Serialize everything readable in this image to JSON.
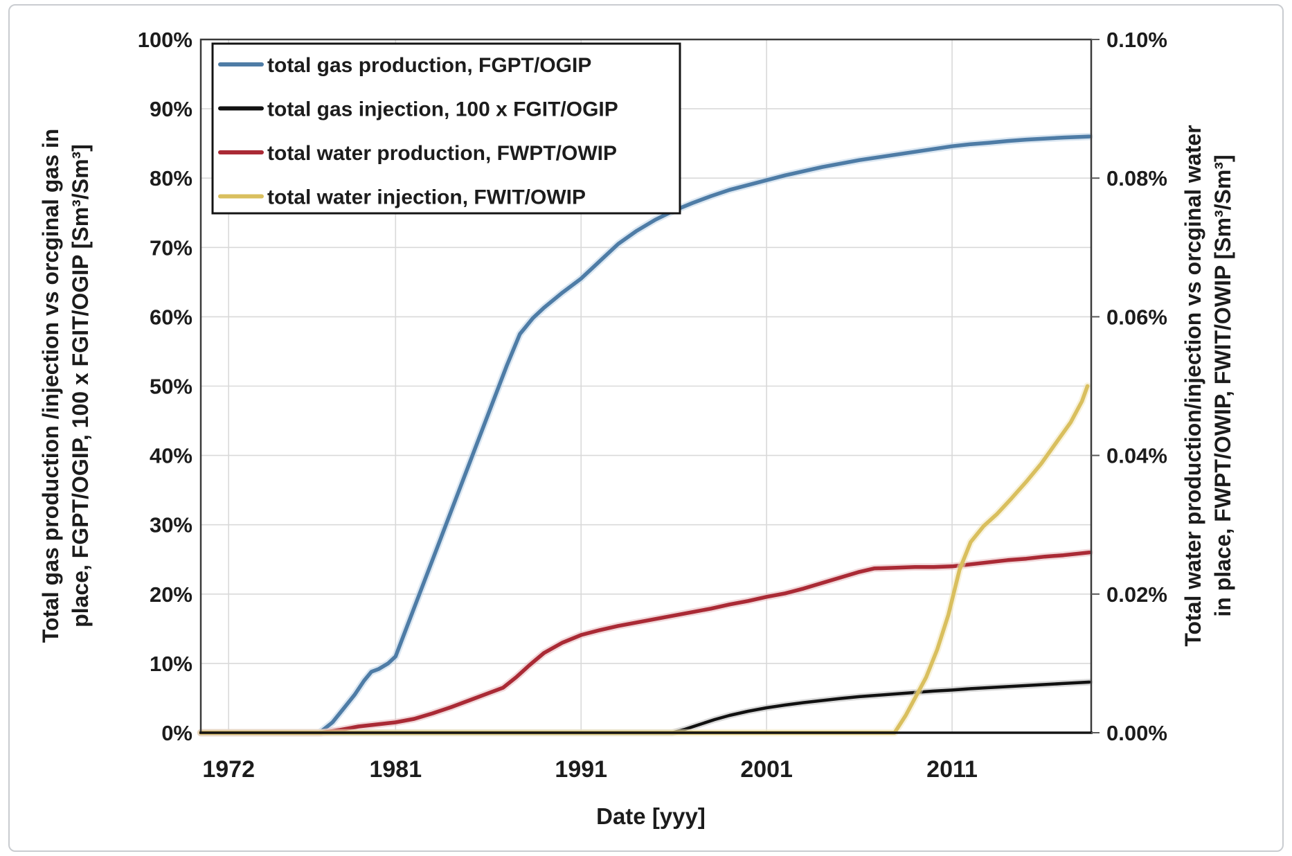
{
  "figure": {
    "background": "#ffffff",
    "frame_border_color": "#c9ccd0",
    "plot_border_color": "#3a3a3a",
    "gridline_color": "#d9d9d9",
    "tick_mark_color": "#595959",
    "text_color": "#1c1c1c"
  },
  "chart_data": {
    "type": "line",
    "title": "",
    "xlabel": "Date [yyy]",
    "x_range": [
      1970.5,
      2018.5
    ],
    "x_ticks": [
      {
        "value": 1972,
        "label": "1972"
      },
      {
        "value": 1981,
        "label": "1981"
      },
      {
        "value": 1991,
        "label": "1991"
      },
      {
        "value": 2001,
        "label": "2001"
      },
      {
        "value": 2011,
        "label": "2011"
      }
    ],
    "left_axis": {
      "title_lines": [
        "Total gas production /injection vs orcginal gas in",
        "place, FGPT/OGIP, 100 x FGIT/OGIP [Sm³/Sm³]"
      ],
      "range": [
        0,
        100
      ],
      "ticks": [
        {
          "value": 0,
          "label": "0%"
        },
        {
          "value": 10,
          "label": "10%"
        },
        {
          "value": 20,
          "label": "20%"
        },
        {
          "value": 30,
          "label": "30%"
        },
        {
          "value": 40,
          "label": "40%"
        },
        {
          "value": 50,
          "label": "50%"
        },
        {
          "value": 60,
          "label": "60%"
        },
        {
          "value": 70,
          "label": "70%"
        },
        {
          "value": 80,
          "label": "80%"
        },
        {
          "value": 90,
          "label": "90%"
        },
        {
          "value": 100,
          "label": "100%"
        }
      ]
    },
    "right_axis": {
      "title_lines": [
        "Total water production/injection vs orcginal water",
        "in place, FWPT/OWIP, FWIT/OWIP [Sm³/Sm³]"
      ],
      "range": [
        0,
        0.1
      ],
      "ticks": [
        {
          "value": 0.0,
          "label": "0.00%"
        },
        {
          "value": 0.02,
          "label": "0.02%"
        },
        {
          "value": 0.04,
          "label": "0.04%"
        },
        {
          "value": 0.06,
          "label": "0.06%"
        },
        {
          "value": 0.08,
          "label": "0.08%"
        },
        {
          "value": 0.1,
          "label": "0.10%"
        }
      ]
    },
    "legend": {
      "position": "top-left"
    },
    "series": [
      {
        "id": "gas-production",
        "name": "total gas production, FGPT/OGIP",
        "axis": "left",
        "color": "#4e7ca6",
        "halo": "#bdd4e7",
        "width": 5.5,
        "x": [
          1970.5,
          1976.9,
          1977.6,
          1978.2,
          1978.8,
          1979.3,
          1979.7,
          1980.1,
          1980.6,
          1981,
          1982,
          1983,
          1984,
          1985,
          1986,
          1987,
          1987.7,
          1988.4,
          1989,
          1990,
          1991,
          1992,
          1993,
          1994,
          1995,
          1996,
          1997,
          1998,
          1999,
          2000,
          2001,
          2002,
          2003,
          2004,
          2005,
          2006,
          2007,
          2008,
          2009,
          2010,
          2011,
          2012,
          2013,
          2014,
          2015,
          2016,
          2017,
          2018.4
        ],
        "y": [
          0,
          0,
          1.5,
          3.5,
          5.5,
          7.5,
          8.8,
          9.2,
          10,
          11,
          18,
          25,
          32,
          39,
          46,
          53,
          57.5,
          59.8,
          61.3,
          63.5,
          65.5,
          68,
          70.5,
          72.4,
          74,
          75.3,
          76.4,
          77.4,
          78.3,
          79,
          79.7,
          80.4,
          81,
          81.6,
          82.1,
          82.6,
          83,
          83.4,
          83.8,
          84.2,
          84.6,
          84.9,
          85.1,
          85.35,
          85.55,
          85.7,
          85.85,
          86
        ]
      },
      {
        "id": "gas-injection",
        "name": "total gas injection, 100 x FGIT/OGIP",
        "axis": "left",
        "color": "#111111",
        "halo": "#bbbbbb",
        "width": 4.5,
        "x": [
          1970.5,
          1995.9,
          1996.6,
          1997.4,
          1998.2,
          1999,
          2000,
          2001,
          2002,
          2003,
          2004,
          2005,
          2006,
          2007,
          2008,
          2009,
          2010,
          2011,
          2012,
          2013,
          2014,
          2015,
          2016,
          2017,
          2018.4
        ],
        "y": [
          0,
          0,
          0.5,
          1.2,
          1.9,
          2.5,
          3.1,
          3.6,
          4.0,
          4.35,
          4.65,
          4.95,
          5.2,
          5.4,
          5.6,
          5.8,
          6.0,
          6.15,
          6.35,
          6.5,
          6.65,
          6.8,
          6.95,
          7.1,
          7.3
        ]
      },
      {
        "id": "water-production",
        "name": "total water production, FWPT/OWIP",
        "axis": "right",
        "color": "#aa2a35",
        "halo": "#e6b8bc",
        "width": 5.5,
        "x": [
          1970.5,
          1977,
          1978,
          1979,
          1980,
          1981,
          1982,
          1983,
          1984,
          1985,
          1986,
          1986.8,
          1987.5,
          1988.2,
          1989,
          1990,
          1991,
          1992,
          1993,
          1994,
          1995,
          1996,
          1997,
          1998,
          1999,
          2000,
          2001,
          2002,
          2003,
          2004,
          2005,
          2006,
          2006.8,
          2008,
          2009,
          2010,
          2011,
          2012,
          2013,
          2014,
          2015,
          2016,
          2017,
          2018.4
        ],
        "y": [
          0,
          0,
          0.0004,
          0.0009,
          0.0012,
          0.0015,
          0.002,
          0.0028,
          0.0037,
          0.0047,
          0.0057,
          0.0065,
          0.008,
          0.0097,
          0.0115,
          0.013,
          0.0141,
          0.0148,
          0.0154,
          0.0159,
          0.0164,
          0.0169,
          0.0174,
          0.0179,
          0.0185,
          0.019,
          0.0196,
          0.0201,
          0.0208,
          0.0216,
          0.0224,
          0.0232,
          0.0237,
          0.0238,
          0.0239,
          0.0239,
          0.024,
          0.0243,
          0.0246,
          0.0249,
          0.0251,
          0.0254,
          0.0256,
          0.026
        ]
      },
      {
        "id": "water-injection",
        "name": "total water injection, FWIT/OWIP",
        "axis": "right",
        "color": "#d9bf5e",
        "halo": "#f2e7bf",
        "width": 5.5,
        "x": [
          1970.5,
          2007.9,
          2008.5,
          2009,
          2009.6,
          2010.2,
          2010.8,
          2011.4,
          2012,
          2012.7,
          2013.4,
          2014.2,
          2015,
          2015.8,
          2016.6,
          2017.4,
          2018,
          2018.3
        ],
        "y": [
          0,
          0,
          0.0025,
          0.005,
          0.008,
          0.012,
          0.017,
          0.0235,
          0.0275,
          0.0298,
          0.0315,
          0.0338,
          0.0362,
          0.0388,
          0.0418,
          0.0448,
          0.0478,
          0.05
        ]
      }
    ]
  }
}
